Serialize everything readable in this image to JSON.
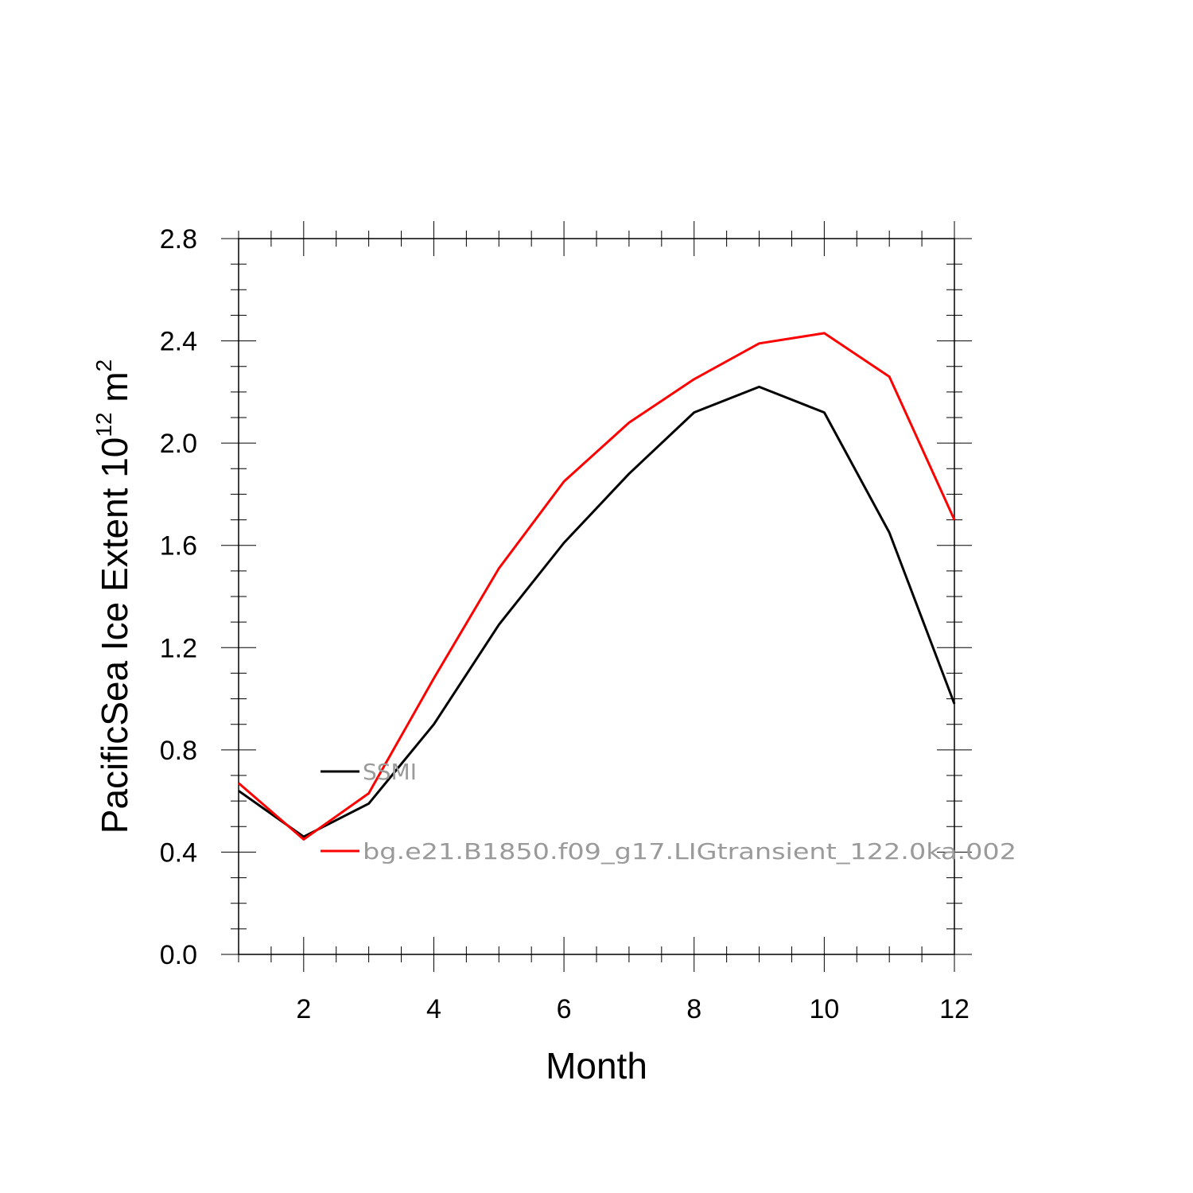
{
  "chart_data": {
    "type": "line",
    "xlabel": "Month",
    "ylabel": {
      "main": "PacificSea Ice Extent 10",
      "exp": "12",
      "unit": " m",
      "unit_exp": "2"
    },
    "xlim": [
      1,
      12
    ],
    "ylim": [
      0,
      2.8
    ],
    "x_ticks": [
      2,
      4,
      6,
      8,
      10,
      12
    ],
    "x_tick_labels": [
      "2",
      "4",
      "6",
      "8",
      "10",
      "12"
    ],
    "y_ticks": [
      0,
      0.4,
      0.8,
      1.2,
      1.6,
      2.0,
      2.4,
      2.8
    ],
    "y_tick_labels": [
      "0.0",
      "0.4",
      "0.8",
      "1.2",
      "1.6",
      "2.0",
      "2.4",
      "2.8"
    ],
    "x": [
      1,
      2,
      3,
      4,
      5,
      6,
      7,
      8,
      9,
      10,
      11,
      12
    ],
    "series": [
      {
        "name": "SSMI",
        "color": "#000000",
        "values": [
          0.64,
          0.46,
          0.59,
          0.9,
          1.29,
          1.61,
          1.88,
          2.12,
          2.22,
          2.12,
          1.65,
          0.98
        ]
      },
      {
        "name": "bg.e21.B1850.f09_g17.LIGtransient_122.0ka.002",
        "color": "#ff0000",
        "values": [
          0.67,
          0.45,
          0.63,
          1.08,
          1.51,
          1.85,
          2.08,
          2.25,
          2.39,
          2.43,
          2.26,
          1.7
        ]
      }
    ],
    "grid": false,
    "legend_position": "inside-lower-left"
  }
}
